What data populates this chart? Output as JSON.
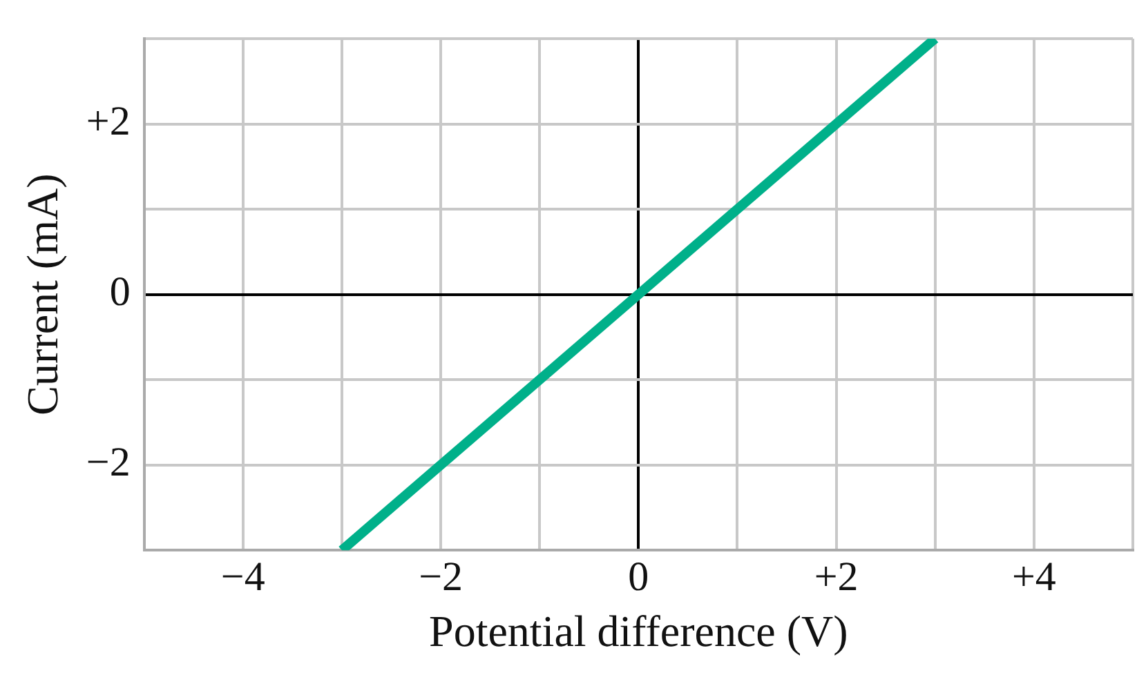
{
  "chart_data": {
    "type": "line",
    "xlabel": "Potential difference (V)",
    "ylabel": "Current (mA)",
    "xlim": [
      -5,
      5
    ],
    "ylim": [
      -3,
      3
    ],
    "xticks": [
      {
        "value": -5,
        "label": null
      },
      {
        "value": -4,
        "label": "−4"
      },
      {
        "value": -3,
        "label": null
      },
      {
        "value": -2,
        "label": "−2"
      },
      {
        "value": -1,
        "label": null
      },
      0,
      {
        "value": 1,
        "label": null
      },
      {
        "value": 2,
        "label": "+2"
      },
      {
        "value": 3,
        "label": null
      },
      {
        "value": 4,
        "label": "+4"
      },
      {
        "value": 5,
        "label": null
      }
    ],
    "yticks": [
      {
        "value": -3,
        "label": null
      },
      {
        "value": -2,
        "label": "−2"
      },
      {
        "value": -1,
        "label": null
      },
      0,
      {
        "value": 1,
        "label": null
      },
      {
        "value": 2,
        "label": "+2"
      },
      {
        "value": 3,
        "label": null
      }
    ],
    "series": [
      {
        "color": "#00b08a",
        "x": [
          -3,
          3
        ],
        "values": [
          -3,
          3
        ]
      }
    ],
    "grid": true,
    "legend": false,
    "marker": "none",
    "line_style": "solid"
  }
}
